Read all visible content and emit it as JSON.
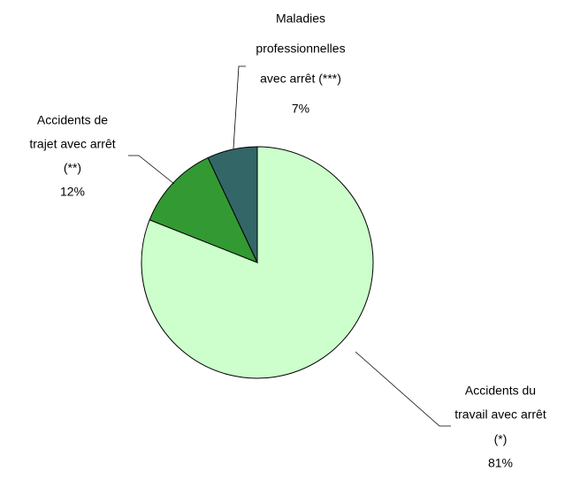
{
  "chart_data": {
    "type": "pie",
    "categories": [
      [
        "Accidents du",
        "travail avec arrêt",
        "(*)"
      ],
      [
        "Accidents de",
        "trajet avec arrêt",
        "(**)"
      ],
      [
        "Maladies",
        "professionnelles",
        "avec arrêt (***)"
      ]
    ],
    "values": [
      81,
      12,
      7
    ],
    "value_labels": [
      "81%",
      "12%",
      "7%"
    ],
    "colors": [
      "#ccffcc",
      "#339933",
      "#336666"
    ]
  }
}
